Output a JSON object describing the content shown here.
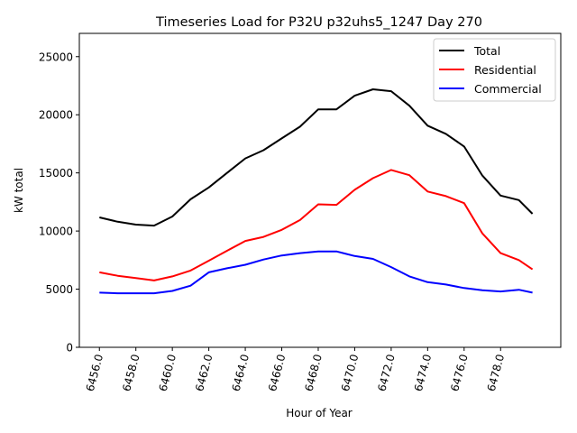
{
  "chart_data": {
    "type": "line",
    "title": "Timeseries Load for P32U p32uhs5_1247  Day 270",
    "xlabel": "Hour of Year",
    "ylabel": "kW total",
    "xlim": [
      6454.9,
      6481.3
    ],
    "ylim": [
      0,
      27000
    ],
    "x_ticks": [
      6456,
      6458,
      6460,
      6462,
      6464,
      6466,
      6468,
      6470,
      6472,
      6474,
      6476,
      6478
    ],
    "x_tick_labels": [
      "6456.0",
      "6458.0",
      "6460.0",
      "6462.0",
      "6464.0",
      "6466.0",
      "6468.0",
      "6470.0",
      "6472.0",
      "6474.0",
      "6476.0",
      "6478.0"
    ],
    "y_ticks": [
      0,
      5000,
      10000,
      15000,
      20000,
      25000
    ],
    "y_tick_labels": [
      "0",
      "5000",
      "10000",
      "15000",
      "20000",
      "25000"
    ],
    "grid": false,
    "legend_position": "top-right",
    "x": [
      6456,
      6457,
      6458,
      6459,
      6460,
      6461,
      6462,
      6463,
      6464,
      6465,
      6466,
      6467,
      6468,
      6469,
      6470,
      6471,
      6472,
      6473,
      6474,
      6475,
      6476,
      6477,
      6478,
      6479,
      6479.75
    ],
    "series": [
      {
        "name": "Total",
        "color": "#000000",
        "values": [
          11170,
          10800,
          10550,
          10470,
          11250,
          12730,
          13750,
          15000,
          16250,
          16950,
          17970,
          18980,
          20470,
          20470,
          21640,
          22190,
          22030,
          20780,
          19060,
          18360,
          17270,
          14770,
          13050,
          12660,
          11480
        ]
      },
      {
        "name": "Residential",
        "color": "#ff0000",
        "values": [
          6450,
          6150,
          5950,
          5750,
          6100,
          6600,
          7450,
          8300,
          9150,
          9500,
          10100,
          10950,
          12300,
          12250,
          13550,
          14550,
          15250,
          14800,
          13400,
          13000,
          12400,
          9800,
          8100,
          7500,
          6700
        ]
      },
      {
        "name": "Commercial",
        "color": "#0000ff",
        "values": [
          4700,
          4650,
          4650,
          4650,
          4850,
          5300,
          6450,
          6800,
          7100,
          7550,
          7900,
          8100,
          8250,
          8250,
          7850,
          7600,
          6900,
          6100,
          5600,
          5400,
          5100,
          4900,
          4800,
          4950,
          4700
        ]
      }
    ]
  }
}
